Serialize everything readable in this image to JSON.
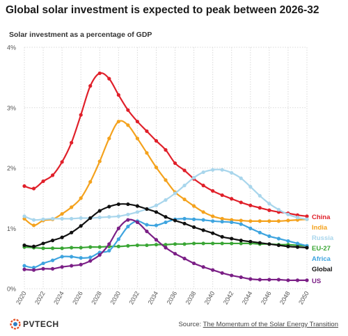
{
  "title": "Global solar investment is expected to peak between 2026-32",
  "subtitle": "Solar investment as a percentage of GDP",
  "source_prefix": "Source: ",
  "source_link": "The Momentum of the Solar Energy Transition",
  "logo_text": "PVTECH",
  "chart_data": {
    "type": "line",
    "x": [
      2020,
      2021,
      2022,
      2023,
      2024,
      2025,
      2026,
      2027,
      2028,
      2029,
      2030,
      2031,
      2032,
      2033,
      2034,
      2035,
      2036,
      2037,
      2038,
      2039,
      2040,
      2041,
      2042,
      2043,
      2044,
      2045,
      2046,
      2047,
      2048,
      2049,
      2050
    ],
    "xticks": [
      "2020",
      "2022",
      "2024",
      "2026",
      "2028",
      "2030",
      "2032",
      "2034",
      "2036",
      "2038",
      "2040",
      "2042",
      "2044",
      "2046",
      "2048",
      "2050"
    ],
    "yticks": [
      "0%",
      "1%",
      "2%",
      "3%",
      "4%"
    ],
    "ylim": [
      0,
      4
    ],
    "xlim": [
      2020,
      2050
    ],
    "grid": true,
    "legend": "end-labels",
    "series": [
      {
        "name": "China",
        "color": "#e0202a",
        "values": [
          1.7,
          1.66,
          1.78,
          1.88,
          2.1,
          2.42,
          2.88,
          3.36,
          3.57,
          3.48,
          3.21,
          2.96,
          2.77,
          2.61,
          2.45,
          2.3,
          2.08,
          1.96,
          1.82,
          1.71,
          1.62,
          1.55,
          1.49,
          1.43,
          1.38,
          1.34,
          1.3,
          1.27,
          1.25,
          1.22,
          1.2
        ]
      },
      {
        "name": "India",
        "color": "#f4a21d",
        "values": [
          1.16,
          1.05,
          1.13,
          1.15,
          1.24,
          1.35,
          1.5,
          1.77,
          2.11,
          2.49,
          2.77,
          2.71,
          2.49,
          2.25,
          2.01,
          1.8,
          1.6,
          1.48,
          1.37,
          1.27,
          1.2,
          1.16,
          1.14,
          1.13,
          1.12,
          1.12,
          1.12,
          1.12,
          1.13,
          1.14,
          1.15
        ]
      },
      {
        "name": "Russia",
        "color": "#a9d6ec",
        "values": [
          1.2,
          1.14,
          1.15,
          1.16,
          1.16,
          1.16,
          1.17,
          1.17,
          1.18,
          1.19,
          1.2,
          1.23,
          1.27,
          1.32,
          1.38,
          1.47,
          1.58,
          1.71,
          1.84,
          1.93,
          1.97,
          1.97,
          1.92,
          1.83,
          1.69,
          1.54,
          1.41,
          1.31,
          1.23,
          1.18,
          1.15
        ]
      },
      {
        "name": "EU-27",
        "color": "#3aa635",
        "values": [
          0.69,
          0.68,
          0.67,
          0.67,
          0.67,
          0.68,
          0.68,
          0.69,
          0.69,
          0.7,
          0.7,
          0.71,
          0.72,
          0.72,
          0.73,
          0.73,
          0.74,
          0.74,
          0.75,
          0.75,
          0.75,
          0.75,
          0.75,
          0.75,
          0.75,
          0.74,
          0.74,
          0.73,
          0.73,
          0.72,
          0.71
        ]
      },
      {
        "name": "Africa",
        "color": "#3ea4df",
        "values": [
          0.38,
          0.35,
          0.42,
          0.47,
          0.53,
          0.53,
          0.51,
          0.52,
          0.6,
          0.63,
          0.82,
          1.03,
          1.12,
          1.06,
          1.05,
          1.1,
          1.15,
          1.16,
          1.15,
          1.14,
          1.12,
          1.11,
          1.1,
          1.07,
          1.0,
          0.93,
          0.87,
          0.83,
          0.79,
          0.75,
          0.71
        ]
      },
      {
        "name": "Global",
        "color": "#111111",
        "values": [
          0.72,
          0.7,
          0.75,
          0.8,
          0.85,
          0.93,
          1.04,
          1.17,
          1.29,
          1.36,
          1.4,
          1.4,
          1.37,
          1.32,
          1.27,
          1.19,
          1.13,
          1.08,
          1.02,
          0.97,
          0.92,
          0.86,
          0.83,
          0.8,
          0.78,
          0.76,
          0.74,
          0.72,
          0.7,
          0.69,
          0.68
        ]
      },
      {
        "name": "US",
        "color": "#7b1f86",
        "values": [
          0.32,
          0.31,
          0.33,
          0.33,
          0.36,
          0.38,
          0.4,
          0.46,
          0.56,
          0.74,
          1.0,
          1.14,
          1.1,
          0.95,
          0.81,
          0.68,
          0.58,
          0.5,
          0.42,
          0.36,
          0.31,
          0.26,
          0.22,
          0.19,
          0.16,
          0.15,
          0.15,
          0.15,
          0.14,
          0.14,
          0.14
        ]
      }
    ]
  },
  "colors": {
    "grid": "#d9d9d9",
    "axis_text": "#555555",
    "logo_accent": "#e24a1c",
    "logo_blue": "#2f7fc4"
  }
}
